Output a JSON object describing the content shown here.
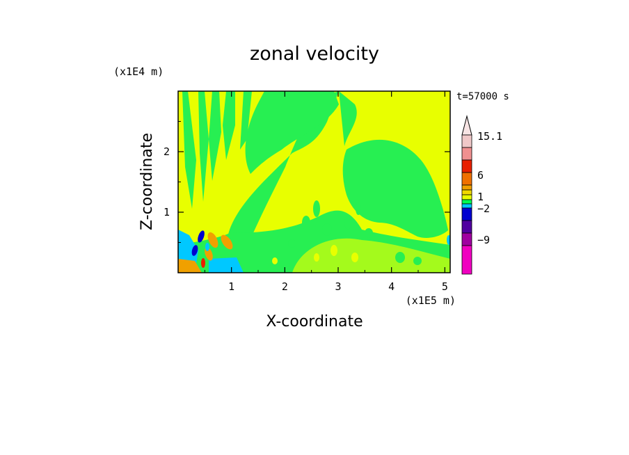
{
  "chart_data": {
    "type": "heatmap",
    "title": "zonal velocity",
    "xlabel": "X-coordinate",
    "ylabel": "Z-coordinate",
    "x_unit": "(x1E5 m)",
    "y_unit": "(x1E4 m)",
    "time_label": "t=57000 s",
    "xlim": [
      0,
      5.1
    ],
    "ylim": [
      0,
      3.0
    ],
    "x_ticks": [
      1,
      2,
      3,
      4,
      5
    ],
    "y_ticks": [
      1,
      2
    ],
    "colorbar": {
      "labels": [
        {
          "text": "15.1",
          "value": 15.1
        },
        {
          "text": "6",
          "value": 6
        },
        {
          "text": "1",
          "value": 1
        },
        {
          "text": "−2",
          "value": -2
        },
        {
          "text": "−9",
          "value": -9
        }
      ],
      "levels": [
        {
          "color": "#f0c8c8"
        },
        {
          "color": "#f09090"
        },
        {
          "color": "#e82000"
        },
        {
          "color": "#f07000"
        },
        {
          "color": "#f0a000"
        },
        {
          "color": "#f0d800"
        },
        {
          "color": "#e8ff00"
        },
        {
          "color": "#00ff50"
        },
        {
          "color": "#00c8ff"
        },
        {
          "color": "#0000d0"
        },
        {
          "color": "#5000a0"
        },
        {
          "color": "#a000a0"
        },
        {
          "color": "#f000c0"
        }
      ]
    },
    "field_colors": {
      "yellow": "#e8ff00",
      "green": "#27ef52",
      "cyan": "#00c8ff",
      "orange": "#f0a000",
      "blue": "#0000d0",
      "red": "#e82000"
    }
  }
}
